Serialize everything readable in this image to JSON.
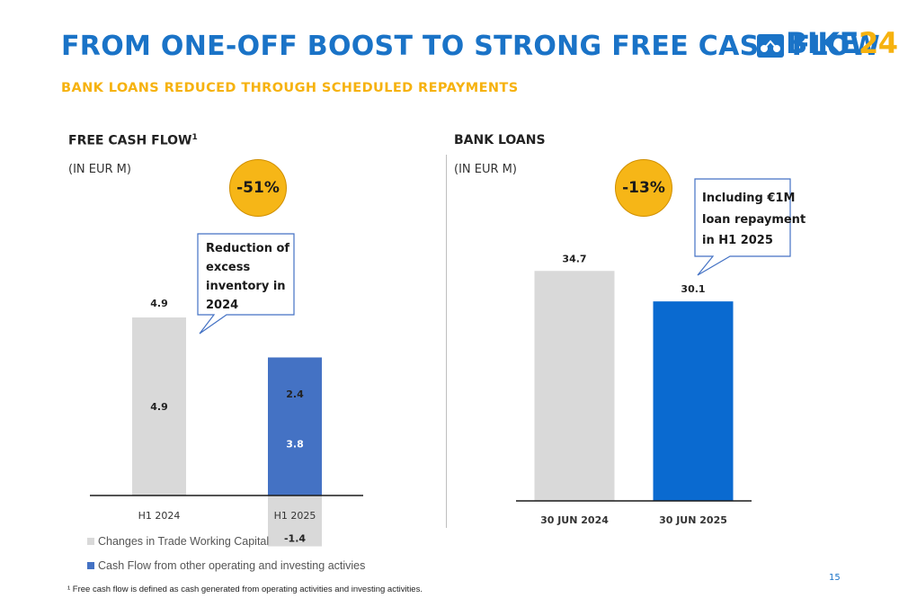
{
  "header": {
    "title": "FROM ONE-OFF BOOST TO STRONG FREE CASH FLOW",
    "subtitle": "BANK LOANS REDUCED THROUGH SCHEDULED REPAYMENTS",
    "logo_main": "BIKE",
    "logo_accent": "24"
  },
  "left_panel": {
    "title": "FREE CASH FLOW",
    "title_sup": "1",
    "unit": "(IN EUR M)",
    "change_badge": "-51%",
    "callout": [
      "Reduction of",
      "excess",
      "inventory in",
      "2024"
    ]
  },
  "right_panel": {
    "title": "BANK LOANS",
    "unit": "(IN EUR M)",
    "change_badge": "-13%",
    "callout": [
      "Including €1M",
      "loan repayment",
      "in H1 2025"
    ]
  },
  "legend": {
    "items": [
      {
        "label": "Changes in Trade Working Capital",
        "color": "#d9d9d9"
      },
      {
        "label": "Cash Flow from other operating and investing activies",
        "color": "#4472c4"
      }
    ]
  },
  "footnote": "¹ Free cash flow is defined as cash generated from operating activities and investing activities.",
  "page_number": "15",
  "chart_data": [
    {
      "type": "bar",
      "stacked": true,
      "title": "FREE CASH FLOW",
      "categories": [
        "H1 2024",
        "H1 2025"
      ],
      "totals": [
        4.9,
        2.4
      ],
      "series": [
        {
          "name": "Changes in Trade Working Capital",
          "values": [
            4.9,
            -1.4
          ],
          "color": "#d9d9d9"
        },
        {
          "name": "Cash Flow from other operating and investing activies",
          "values": [
            0.0,
            3.8
          ],
          "color": "#4472c4"
        }
      ],
      "segment_labels": [
        {
          "category": "H1 2024",
          "text": "4.9",
          "value": 4.9,
          "series": 0
        },
        {
          "category": "H1 2025",
          "text": "3.8",
          "value": 3.8,
          "series": 1
        },
        {
          "category": "H1 2025",
          "text": "-1.4",
          "value": -1.4,
          "series": 0
        }
      ],
      "total_labels": [
        "4.9",
        "2.4"
      ],
      "ylim": [
        -1.7,
        5.0
      ]
    },
    {
      "type": "bar",
      "title": "BANK LOANS",
      "categories": [
        "30 JUN 2024",
        "30 JUN 2025"
      ],
      "values": [
        34.7,
        30.1
      ],
      "value_labels": [
        "34.7",
        "30.1"
      ],
      "colors": [
        "#d9d9d9",
        "#0a6ad0"
      ],
      "ylim": [
        0,
        36
      ]
    }
  ]
}
